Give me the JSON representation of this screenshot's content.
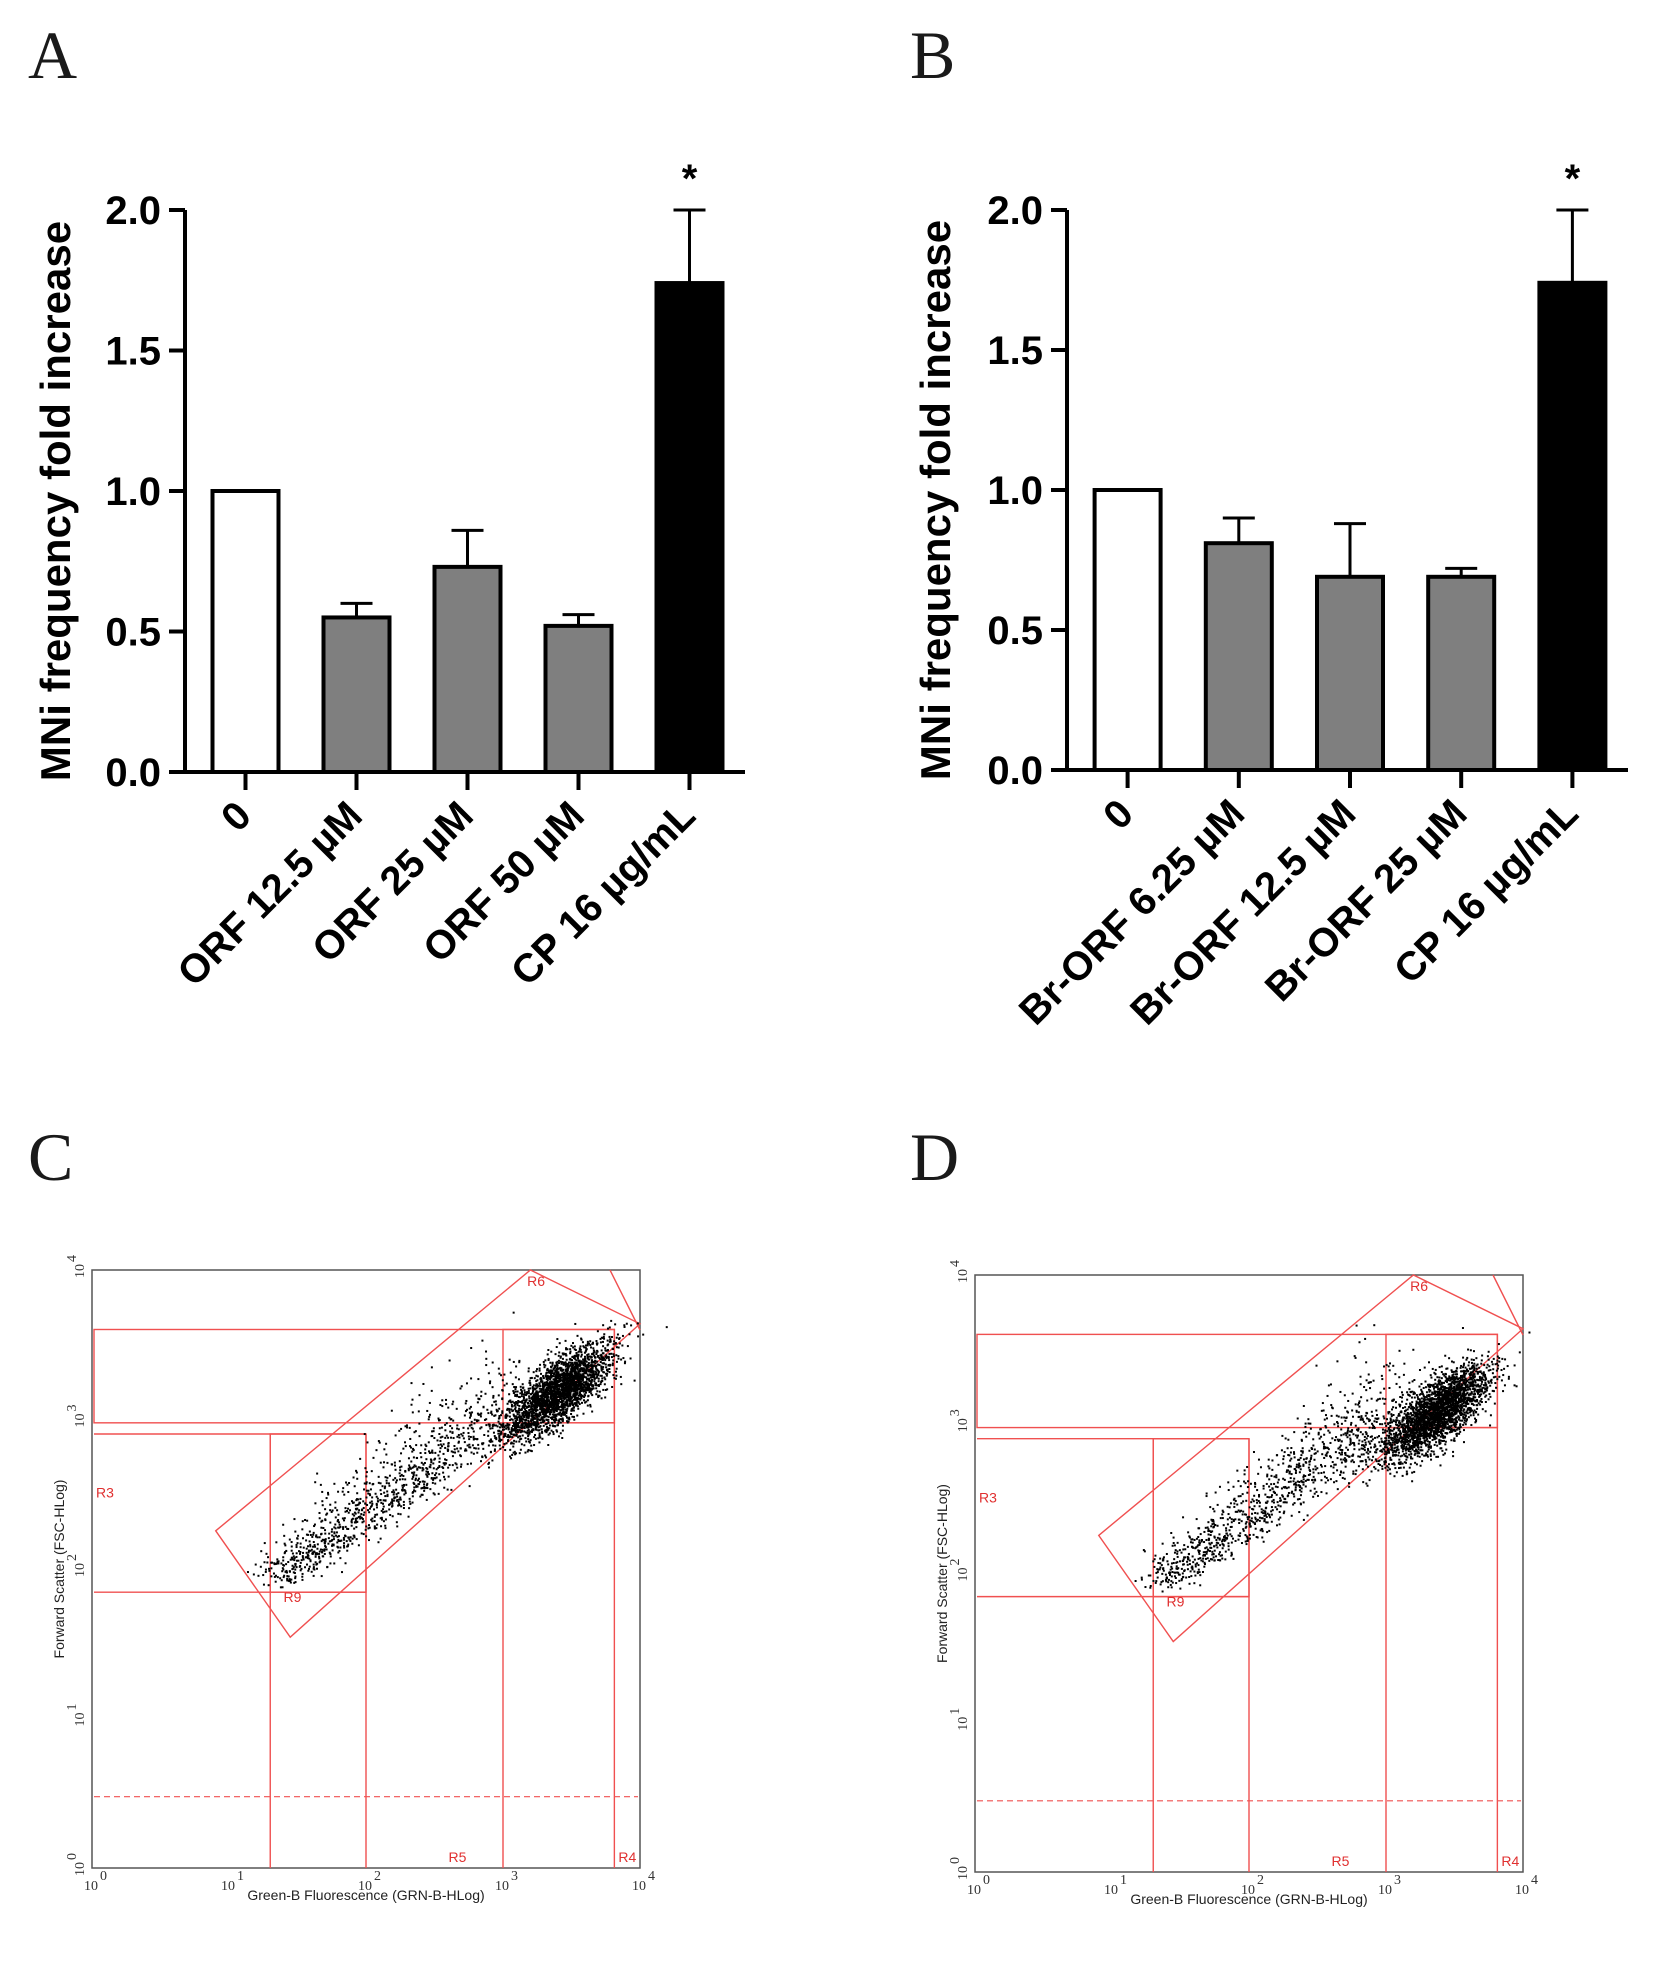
{
  "panels": {
    "A": {
      "letter": "A",
      "chart_data": {
        "type": "bar",
        "title": "",
        "xlabel": "",
        "ylabel": "MNi frequency fold increase",
        "ylim": [
          0,
          2.0
        ],
        "yticks": [
          "0.0",
          "0.5",
          "1.0",
          "1.5",
          "2.0"
        ],
        "categories": [
          "0",
          "ORF 12.5 µM",
          "ORF 25 µM",
          "ORF 50 µM",
          "CP 16 µg/mL"
        ],
        "values": [
          1.0,
          0.55,
          0.73,
          0.52,
          1.74
        ],
        "errors": [
          0.0,
          0.05,
          0.13,
          0.04,
          0.26
        ],
        "colors": [
          "#ffffff",
          "#7f7f7f",
          "#7f7f7f",
          "#7f7f7f",
          "#000000"
        ],
        "significance": [
          "",
          "",
          "",
          "",
          "*"
        ]
      }
    },
    "B": {
      "letter": "B",
      "chart_data": {
        "type": "bar",
        "title": "",
        "xlabel": "",
        "ylabel": "MNi frequency fold increase",
        "ylim": [
          0,
          2.0
        ],
        "yticks": [
          "0.0",
          "0.5",
          "1.0",
          "1.5",
          "2.0"
        ],
        "categories": [
          "0",
          "Br-ORF 6.25 µM",
          "Br-ORF 12.5 µM",
          "Br-ORF 25 µM",
          "CP 16 µg/mL"
        ],
        "values": [
          1.0,
          0.81,
          0.69,
          0.69,
          1.74
        ],
        "errors": [
          0.0,
          0.09,
          0.19,
          0.03,
          0.26
        ],
        "colors": [
          "#ffffff",
          "#7f7f7f",
          "#7f7f7f",
          "#7f7f7f",
          "#000000"
        ],
        "significance": [
          "",
          "",
          "",
          "",
          "*"
        ]
      }
    },
    "C": {
      "letter": "C",
      "chart_data": {
        "type": "scatter",
        "xlabel": "Green-B Fluorescence (GRN-B-HLog)",
        "ylabel": "Forward Scatter (FSC-HLog)",
        "xscale": "log",
        "yscale": "log",
        "xlim": [
          1,
          10000
        ],
        "ylim": [
          1,
          10000
        ],
        "xticks": [
          "10",
          "10",
          "10",
          "10",
          "10"
        ],
        "xtick_exps": [
          "0",
          "1",
          "2",
          "3",
          "4"
        ],
        "yticks": [
          "10",
          "10",
          "10",
          "10",
          "10"
        ],
        "ytick_exps": [
          "0",
          "1",
          "2",
          "3",
          "4"
        ],
        "regions": [
          "R3",
          "R4",
          "R5",
          "R6",
          "R9"
        ],
        "main_population": {
          "x_center": 2500,
          "y_center": 1550
        },
        "tail_population": {
          "x_range": [
            20,
            1000
          ],
          "y_range": [
            70,
            700
          ]
        },
        "gate_color": "#f05050"
      }
    },
    "D": {
      "letter": "D",
      "chart_data": {
        "type": "scatter",
        "xlabel": "Green-B Fluorescence (GRN-B-HLog)",
        "ylabel": "Forward Scatter (FSC-HLog)",
        "xscale": "log",
        "yscale": "log",
        "xlim": [
          1,
          10000
        ],
        "ylim": [
          1,
          10000
        ],
        "xticks": [
          "10",
          "10",
          "10",
          "10",
          "10"
        ],
        "xtick_exps": [
          "0",
          "1",
          "2",
          "3",
          "4"
        ],
        "yticks": [
          "10",
          "10",
          "10",
          "10",
          "10"
        ],
        "ytick_exps": [
          "0",
          "1",
          "2",
          "3",
          "4"
        ],
        "regions": [
          "R3",
          "R4",
          "R5",
          "R6",
          "R9"
        ],
        "main_population": {
          "x_center": 2300,
          "y_center": 1200
        },
        "tail_population": {
          "x_range": [
            20,
            1000
          ],
          "y_range": [
            70,
            700
          ]
        },
        "gate_color": "#f05050"
      }
    }
  }
}
